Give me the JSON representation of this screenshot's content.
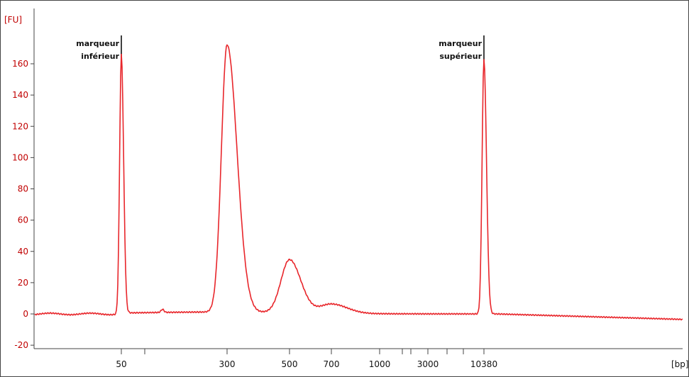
{
  "chart_data": {
    "type": "line",
    "ylabel": "[FU]",
    "xlabel": "[bp]",
    "ylim": [
      -22,
      186
    ],
    "y_ticks": [
      -20,
      0,
      20,
      40,
      60,
      80,
      100,
      120,
      140,
      160
    ],
    "x_tick_labels": [
      "50",
      "300",
      "500",
      "700",
      "1000",
      "3000",
      "10380"
    ],
    "grid": false,
    "line_color": "#e8262b",
    "axis_label_color": "#c00000",
    "baseline": 0,
    "peaks": [
      {
        "label": "50",
        "fu": 166
      },
      {
        "label": "300",
        "fu": 171
      },
      {
        "label": "500",
        "fu": 34
      },
      {
        "label": "700",
        "fu": 6
      },
      {
        "label": "10380",
        "fu": 163
      }
    ],
    "annotations": [
      {
        "line1": "marqueur",
        "line2": "inférieur",
        "at": "50"
      },
      {
        "line1": "marqueur",
        "line2": "supérieur",
        "at": "10380"
      }
    ]
  }
}
